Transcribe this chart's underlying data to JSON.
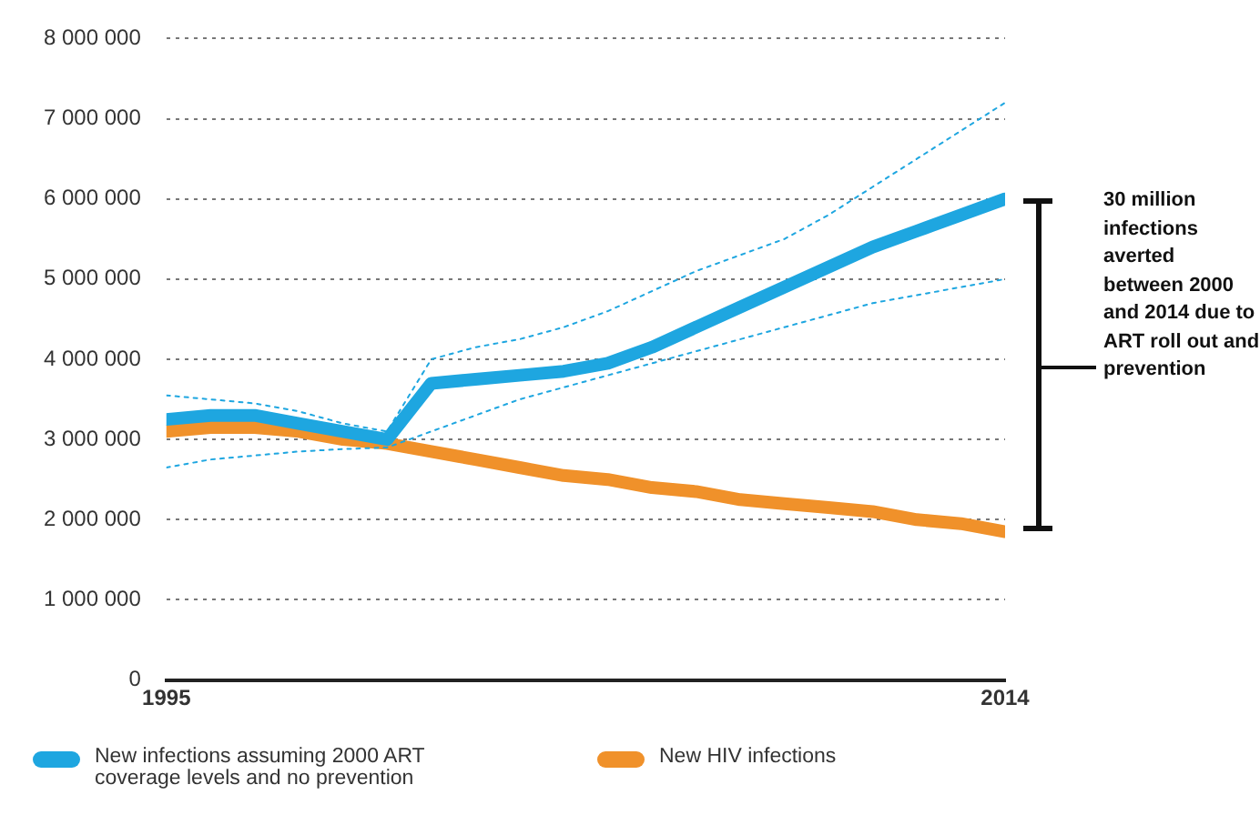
{
  "chart_data": {
    "type": "line",
    "x": [
      1995,
      1996,
      1997,
      1998,
      1999,
      2000,
      2001,
      2002,
      2003,
      2004,
      2005,
      2006,
      2007,
      2008,
      2009,
      2010,
      2011,
      2012,
      2013,
      2014
    ],
    "xlim": [
      1995,
      2014
    ],
    "xticks": [
      1995,
      2014
    ],
    "ylim": [
      0,
      8000000
    ],
    "yticks": [
      {
        "value": 0,
        "label": "0"
      },
      {
        "value": 1000000,
        "label": "1 000 000"
      },
      {
        "value": 2000000,
        "label": "2 000 000"
      },
      {
        "value": 3000000,
        "label": "3 000 000"
      },
      {
        "value": 4000000,
        "label": "4 000 000"
      },
      {
        "value": 5000000,
        "label": "5 000 000"
      },
      {
        "value": 6000000,
        "label": "6 000 000"
      },
      {
        "value": 7000000,
        "label": "7 000 000"
      },
      {
        "value": 8000000,
        "label": "8 000 000"
      }
    ],
    "series": [
      {
        "name": "New infections assuming 2000 ART coverage levels and no prevention",
        "color": "#1ea6e0",
        "values": [
          3250000,
          3300000,
          3300000,
          3200000,
          3100000,
          3000000,
          3700000,
          3750000,
          3800000,
          3850000,
          3950000,
          4150000,
          4400000,
          4650000,
          4900000,
          5150000,
          5400000,
          5600000,
          5800000,
          6000000
        ]
      },
      {
        "color": "#1ea6e0",
        "line_style": "dotted",
        "values": [
          2650000,
          2750000,
          2800000,
          2850000,
          2880000,
          2900000,
          3100000,
          3300000,
          3500000,
          3650000,
          3800000,
          3950000,
          4100000,
          4250000,
          4400000,
          4550000,
          4700000,
          4800000,
          4900000,
          5000000
        ]
      },
      {
        "color": "#1ea6e0",
        "line_style": "dotted",
        "values": [
          3550000,
          3500000,
          3450000,
          3350000,
          3200000,
          3100000,
          4000000,
          4150000,
          4250000,
          4400000,
          4600000,
          4850000,
          5100000,
          5300000,
          5500000,
          5800000,
          6150000,
          6500000,
          6850000,
          7200000
        ]
      },
      {
        "name": "New HIV infections",
        "color": "#f0912a",
        "values": [
          3100000,
          3150000,
          3150000,
          3100000,
          3000000,
          2950000,
          2850000,
          2750000,
          2650000,
          2550000,
          2500000,
          2400000,
          2350000,
          2250000,
          2200000,
          2150000,
          2100000,
          2000000,
          1950000,
          1850000
        ]
      }
    ],
    "annotations": [
      "30 million infections averted between 2000 and 2014 due to ART roll out and prevention"
    ],
    "grid": "y",
    "legend": "bottom",
    "line_style": "solid",
    "marker": "none"
  }
}
